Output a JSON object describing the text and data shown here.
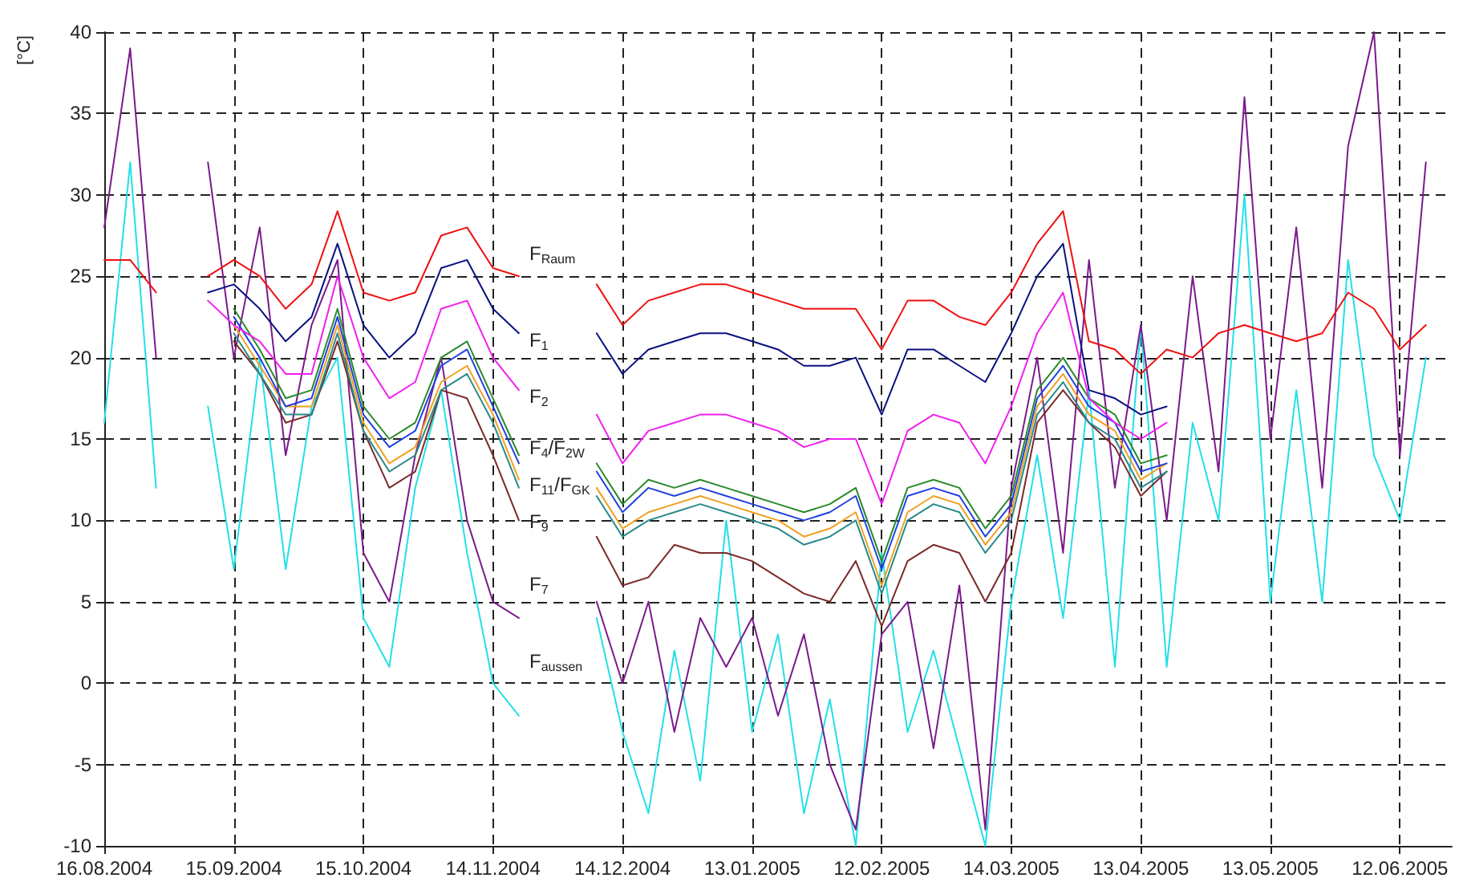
{
  "chart_data": {
    "type": "line",
    "ylabel": "[°C]",
    "grid": true,
    "marker": "none",
    "line_style": "solid",
    "x": [
      "2004-08-16",
      "2004-08-22",
      "2004-08-28",
      "2004-09-03",
      "2004-09-09",
      "2004-09-15",
      "2004-09-21",
      "2004-09-27",
      "2004-10-03",
      "2004-10-09",
      "2004-10-15",
      "2004-10-21",
      "2004-10-27",
      "2004-11-02",
      "2004-11-08",
      "2004-11-14",
      "2004-11-20",
      "2004-11-26",
      "2004-12-02",
      "2004-12-08",
      "2004-12-14",
      "2004-12-20",
      "2004-12-26",
      "2005-01-01",
      "2005-01-07",
      "2005-01-13",
      "2005-01-19",
      "2005-01-25",
      "2005-01-31",
      "2005-02-06",
      "2005-02-12",
      "2005-02-18",
      "2005-02-24",
      "2005-03-02",
      "2005-03-08",
      "2005-03-14",
      "2005-03-20",
      "2005-03-26",
      "2005-04-01",
      "2005-04-07",
      "2005-04-13",
      "2005-04-19",
      "2005-04-25",
      "2005-05-01",
      "2005-05-07",
      "2005-05-13",
      "2005-05-19",
      "2005-05-25",
      "2005-05-31",
      "2005-06-06",
      "2005-06-12",
      "2005-06-18"
    ],
    "xlim": [
      "2004-08-16",
      "2005-06-24"
    ],
    "xticks": [
      {
        "value": "2004-08-16",
        "label": "16.08.2004"
      },
      {
        "value": "2004-09-15",
        "label": "15.09.2004"
      },
      {
        "value": "2004-10-15",
        "label": "15.10.2004"
      },
      {
        "value": "2004-11-14",
        "label": "14.11.2004"
      },
      {
        "value": "2004-12-14",
        "label": "14.12.2004"
      },
      {
        "value": "2005-01-13",
        "label": "13.01.2005"
      },
      {
        "value": "2005-02-12",
        "label": "12.02.2005"
      },
      {
        "value": "2005-03-14",
        "label": "14.03.2005"
      },
      {
        "value": "2005-04-13",
        "label": "13.04.2005"
      },
      {
        "value": "2005-05-13",
        "label": "13.05.2005"
      },
      {
        "value": "2005-06-12",
        "label": "12.06.2005"
      }
    ],
    "ylim": [
      -10,
      40
    ],
    "yticks": [
      -10,
      -5,
      0,
      5,
      10,
      15,
      20,
      25,
      30,
      35,
      40
    ],
    "series": [
      {
        "color": "#22e0e8",
        "values": [
          16,
          32,
          12,
          null,
          17,
          7,
          20,
          7,
          17,
          20,
          4,
          1,
          12,
          18,
          8,
          0,
          -2,
          null,
          null,
          4,
          -3,
          -8,
          2,
          -6,
          10,
          -3,
          3,
          -8,
          -1,
          -10,
          8,
          -3,
          2,
          -4,
          -10,
          5,
          14,
          4,
          18,
          1,
          22,
          1,
          16,
          10,
          30,
          5,
          18,
          5,
          26,
          14,
          10,
          20
        ]
      },
      {
        "color": "#7a1a8c",
        "values": [
          28,
          39,
          20,
          null,
          32,
          20,
          28,
          14,
          22,
          26,
          8,
          5,
          14,
          20,
          10,
          5,
          4,
          null,
          null,
          5,
          0,
          5,
          -3,
          4,
          1,
          4,
          -2,
          3,
          -5,
          -9,
          3,
          5,
          -4,
          6,
          -9,
          12,
          20,
          8,
          26,
          12,
          22,
          10,
          25,
          13,
          36,
          15,
          28,
          12,
          33,
          40,
          14,
          32
        ]
      },
      {
        "color": "#7b2a2a",
        "values": [
          null,
          null,
          null,
          null,
          null,
          21,
          19,
          16,
          16.5,
          21,
          15.5,
          12,
          13,
          18,
          17.5,
          14,
          10,
          null,
          null,
          9,
          6,
          6.5,
          8.5,
          8,
          8,
          7.5,
          6.5,
          5.5,
          5,
          7.5,
          3.5,
          7.5,
          8.5,
          8,
          5,
          8,
          16,
          18,
          16,
          14.5,
          11.5,
          13,
          null,
          null,
          null,
          null,
          null,
          null,
          null,
          null,
          null,
          null
        ]
      },
      {
        "color": "#2a8a8a",
        "values": [
          null,
          null,
          null,
          null,
          null,
          21.5,
          19,
          16.5,
          16.5,
          21.5,
          15.5,
          13,
          14,
          18,
          19,
          16,
          12,
          null,
          null,
          11.5,
          9,
          10,
          10.5,
          11,
          10.5,
          10,
          9.5,
          8.5,
          9,
          10,
          5.5,
          10,
          11,
          10.5,
          8,
          10,
          16.5,
          18.5,
          16,
          15,
          12,
          13,
          null,
          null,
          null,
          null,
          null,
          null,
          null,
          null,
          null,
          null
        ]
      },
      {
        "color": "#f0a020",
        "values": [
          null,
          null,
          null,
          null,
          null,
          22,
          19.5,
          17,
          17,
          22,
          16,
          13.5,
          14.5,
          18.5,
          19.5,
          16.5,
          12.5,
          null,
          null,
          12,
          9.5,
          10.5,
          11,
          11.5,
          11,
          10.5,
          10,
          9,
          9.5,
          10.5,
          6,
          10.5,
          11.5,
          11,
          8.5,
          10.5,
          17,
          19,
          16.5,
          15.5,
          12.5,
          13.5,
          null,
          null,
          null,
          null,
          null,
          null,
          null,
          null,
          null,
          null
        ]
      },
      {
        "color": "#2040e0",
        "values": [
          null,
          null,
          null,
          null,
          null,
          22.5,
          20,
          17,
          17.5,
          22.5,
          16.5,
          14.5,
          15.5,
          19.5,
          20.5,
          17,
          13.5,
          null,
          null,
          13,
          10.5,
          12,
          11.5,
          12,
          11.5,
          11,
          10.5,
          10,
          10.5,
          11.5,
          7,
          11.5,
          12,
          11.5,
          9,
          11,
          17.5,
          19.5,
          17,
          16,
          13,
          13.5,
          null,
          null,
          null,
          null,
          null,
          null,
          null,
          null,
          null,
          null
        ]
      },
      {
        "color": "#2a8a2a",
        "values": [
          null,
          null,
          null,
          null,
          null,
          23,
          20.5,
          17.5,
          18,
          23,
          17,
          15,
          16,
          20,
          21,
          17.5,
          14,
          null,
          null,
          13.5,
          11,
          12.5,
          12,
          12.5,
          12,
          11.5,
          11,
          10.5,
          11,
          12,
          7.5,
          12,
          12.5,
          12,
          9.5,
          11.5,
          18,
          20,
          17.5,
          16.5,
          13.5,
          14,
          null,
          null,
          null,
          null,
          null,
          null,
          null,
          null,
          null,
          null
        ]
      },
      {
        "color": "#f020f0",
        "values": [
          null,
          null,
          null,
          null,
          23.5,
          22,
          21,
          19,
          19,
          25,
          20,
          17.5,
          18.5,
          23,
          23.5,
          20,
          18,
          null,
          null,
          16.5,
          13.5,
          15.5,
          16,
          16.5,
          16.5,
          16,
          15.5,
          14.5,
          15,
          15,
          11,
          15.5,
          16.5,
          16,
          13.5,
          17,
          21.5,
          24,
          17.5,
          16,
          15,
          16,
          null,
          null,
          null,
          null,
          null,
          null,
          null,
          null,
          null,
          null
        ]
      },
      {
        "color": "#0a1080",
        "values": [
          null,
          null,
          null,
          null,
          24,
          24.5,
          23,
          21,
          22.5,
          27,
          22,
          20,
          21.5,
          25.5,
          26,
          23,
          21.5,
          null,
          null,
          21.5,
          19,
          20.5,
          21,
          21.5,
          21.5,
          21,
          20.5,
          19.5,
          19.5,
          20,
          16.5,
          20.5,
          20.5,
          19.5,
          18.5,
          21.5,
          25,
          27,
          18,
          17.5,
          16.5,
          17,
          null,
          null,
          null,
          null,
          null,
          null,
          null,
          null,
          null,
          null
        ]
      },
      {
        "color": "#f01010",
        "values": [
          26,
          26,
          24,
          null,
          25,
          26,
          25,
          23,
          24.5,
          29,
          24,
          23.5,
          24,
          27.5,
          28,
          25.5,
          25,
          null,
          null,
          24.5,
          22,
          23.5,
          24,
          24.5,
          24.5,
          24,
          23.5,
          23,
          23,
          23,
          20.5,
          23.5,
          23.5,
          22.5,
          22,
          24,
          27,
          29,
          21,
          20.5,
          19,
          20.5,
          20,
          21.5,
          22,
          21.5,
          21,
          21.5,
          24,
          23,
          20.5,
          22
        ]
      }
    ],
    "annotations": [
      "F$_{Raum}$",
      "F$_{1}$",
      "F$_{2}$",
      "F$_{4}$/F$_{2W}$",
      "F$_{11}$/F$_{GK}$",
      "F$_{9}$",
      "F$_{7}$",
      "F$_{aussen}$"
    ]
  }
}
